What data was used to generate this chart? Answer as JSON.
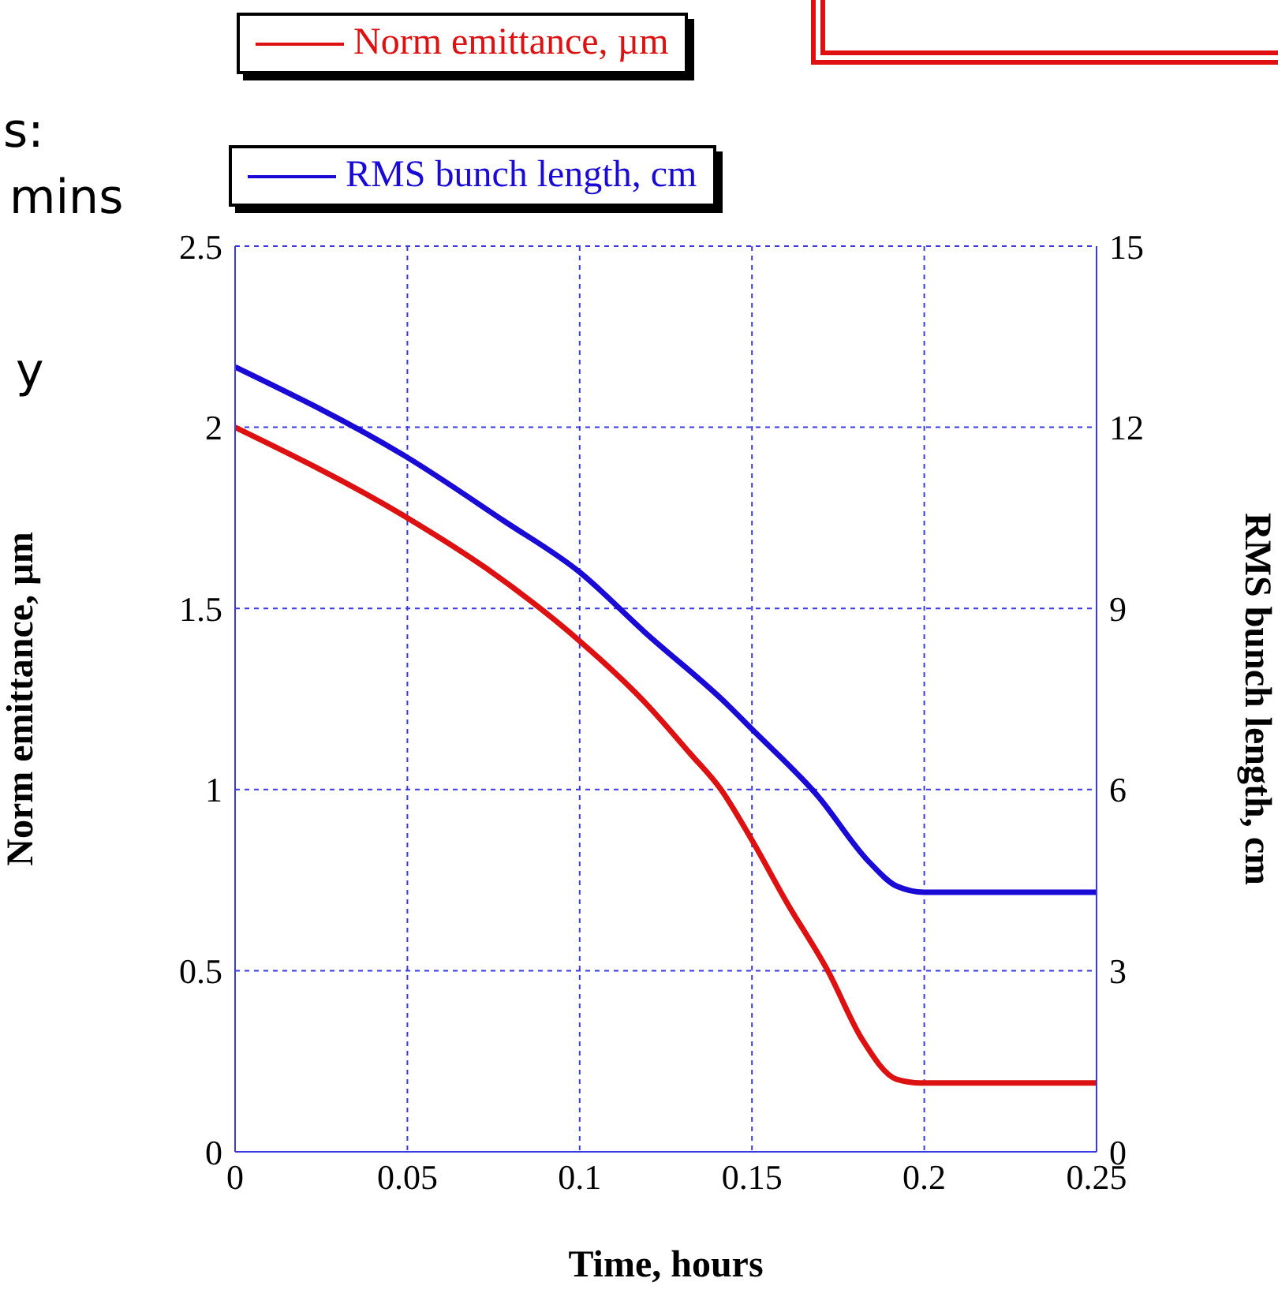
{
  "chart_data": {
    "type": "line",
    "xlabel": "Time, hours",
    "ylabel": "Norm emittance, µm",
    "y2label": "RMS bunch length, cm",
    "xlim": [
      0,
      0.25
    ],
    "xticks": [
      0,
      0.05,
      0.1,
      0.15,
      0.2,
      0.25
    ],
    "ylim": [
      0,
      2.5
    ],
    "yticks": [
      0,
      0.5,
      1,
      1.5,
      2,
      2.5
    ],
    "y2lim": [
      0,
      15
    ],
    "y2ticks": [
      0,
      3,
      6,
      9,
      12,
      15
    ],
    "grid": true,
    "legend": "top",
    "marker": "none",
    "line_style": "solid",
    "annotations": [
      "s:",
      "mins",
      "y"
    ],
    "series": [
      {
        "name": "Norm emittance, µm",
        "color": "#dd1111",
        "x": [
          0,
          0.05,
          0.073,
          0.1,
          0.119,
          0.132,
          0.141,
          0.15,
          0.16,
          0.172,
          0.182,
          0.192,
          0.199,
          0.25
        ],
        "values": [
          2.0,
          1.75,
          1.61,
          1.41,
          1.24,
          1.1,
          1.0,
          0.86,
          0.69,
          0.5,
          0.31,
          0.2,
          0.19,
          0.19
        ]
      },
      {
        "name": "RMS bunch length, cm",
        "color": "#1a0ad6",
        "axis": "y2",
        "x": [
          0,
          0.05,
          0.078,
          0.1,
          0.119,
          0.143,
          0.15,
          0.169,
          0.184,
          0.192,
          0.2,
          0.25
        ],
        "values": [
          13.0,
          11.5,
          10.45,
          9.6,
          8.6,
          7.4,
          7.0,
          5.9,
          4.8,
          4.4,
          4.3,
          4.3
        ]
      }
    ]
  }
}
